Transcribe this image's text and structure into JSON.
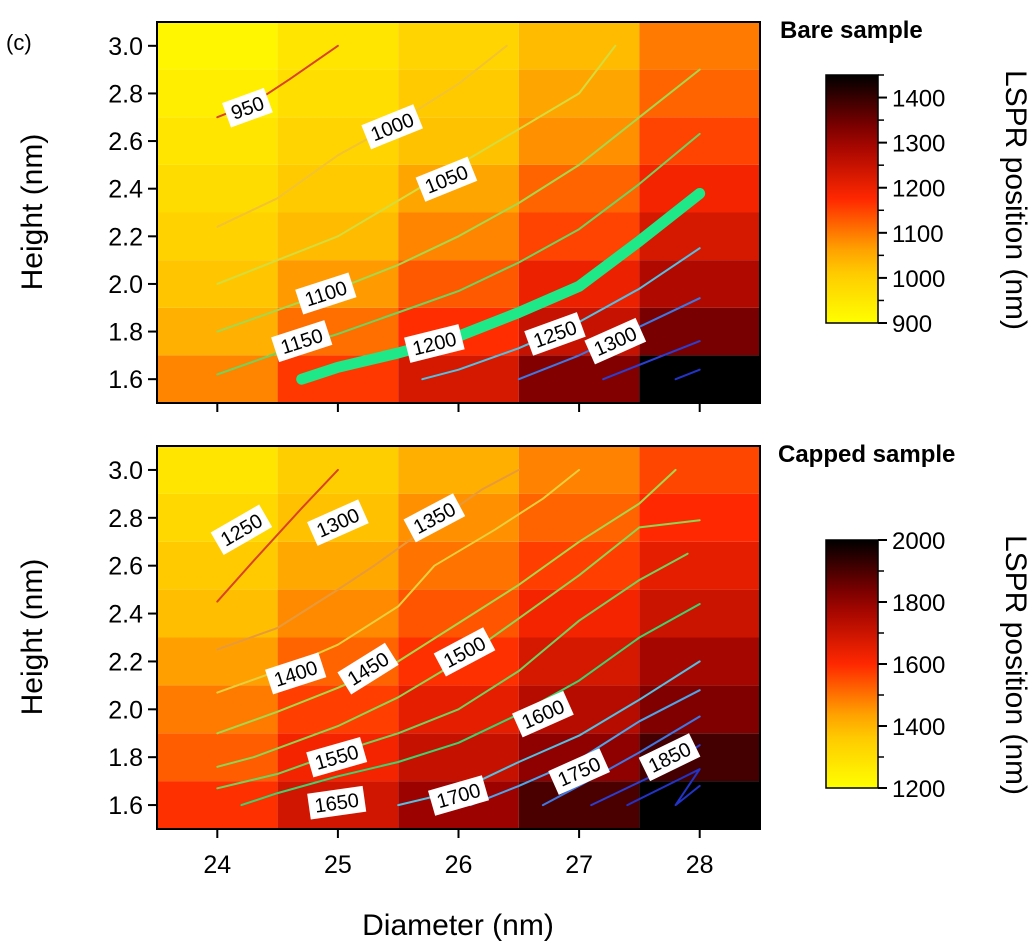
{
  "figure": {
    "panel_tag": "(c)",
    "xlabel": "Diameter (nm)"
  },
  "chart_data": [
    {
      "type": "heatmap",
      "title": "Bare sample",
      "xlabel": "Diameter (nm)",
      "ylabel": "Height (nm)",
      "colorbar_label": "LSPR position (nm)",
      "x": [
        24,
        25,
        26,
        27,
        28
      ],
      "x_ticks": [
        "24",
        "25",
        "26",
        "27",
        "28"
      ],
      "y": [
        1.6,
        1.8,
        2.0,
        2.2,
        2.4,
        2.6,
        2.8,
        3.0
      ],
      "y_ticks": [
        "1.6",
        "1.8",
        "2.0",
        "2.2",
        "2.4",
        "2.6",
        "2.8",
        "3.0"
      ],
      "xlim": [
        23.5,
        28.5
      ],
      "ylim": [
        1.5,
        3.1
      ],
      "color_range": [
        900,
        1450
      ],
      "colorbar_ticks": [
        "900",
        "1000",
        "1100",
        "1200",
        "1300",
        "1400"
      ],
      "z": [
        [
          1090,
          1160,
          1230,
          1330,
          1450
        ],
        [
          1050,
          1110,
          1170,
          1250,
          1340
        ],
        [
          1020,
          1070,
          1130,
          1200,
          1280
        ],
        [
          995,
          1040,
          1090,
          1150,
          1230
        ],
        [
          975,
          1010,
          1060,
          1120,
          1190
        ],
        [
          955,
          990,
          1030,
          1080,
          1150
        ],
        [
          935,
          970,
          1010,
          1060,
          1120
        ],
        [
          920,
          955,
          990,
          1040,
          1100
        ]
      ],
      "contours": [
        {
          "level": 950,
          "label": "950",
          "color": "#d9432a",
          "points": [
            [
              24.0,
              2.7
            ],
            [
              24.3,
              2.76
            ],
            [
              24.6,
              2.86
            ],
            [
              25.0,
              3.0
            ]
          ],
          "label_pos": [
            24.25,
            2.74
          ],
          "label_angle": -20
        },
        {
          "level": 1000,
          "label": "1000",
          "color": "#f2c230",
          "points": [
            [
              24.0,
              2.24
            ],
            [
              24.5,
              2.36
            ],
            [
              25.0,
              2.54
            ],
            [
              25.5,
              2.68
            ],
            [
              26.0,
              2.84
            ],
            [
              26.4,
              3.0
            ]
          ],
          "label_pos": [
            25.45,
            2.66
          ],
          "label_angle": -22
        },
        {
          "level": 1050,
          "label": "1050",
          "color": "#d6dc3a",
          "points": [
            [
              24.0,
              2.0
            ],
            [
              24.5,
              2.1
            ],
            [
              25.0,
              2.2
            ],
            [
              25.5,
              2.35
            ],
            [
              26.0,
              2.5
            ],
            [
              26.5,
              2.65
            ],
            [
              27.0,
              2.8
            ],
            [
              27.3,
              3.0
            ]
          ],
          "label_pos": [
            25.9,
            2.44
          ],
          "label_angle": -22
        },
        {
          "level": 1100,
          "label": "1100",
          "color": "#a6d84a",
          "points": [
            [
              24.0,
              1.8
            ],
            [
              24.5,
              1.89
            ],
            [
              25.0,
              1.98
            ],
            [
              25.5,
              2.08
            ],
            [
              26.0,
              2.2
            ],
            [
              26.5,
              2.34
            ],
            [
              27.0,
              2.5
            ],
            [
              27.5,
              2.7
            ],
            [
              28.0,
              2.9
            ]
          ],
          "label_pos": [
            24.9,
            1.96
          ],
          "label_angle": -18
        },
        {
          "level": 1150,
          "label": "1150",
          "color": "#6fd45e",
          "points": [
            [
              24.0,
              1.62
            ],
            [
              24.5,
              1.71
            ],
            [
              25.0,
              1.79
            ],
            [
              25.5,
              1.88
            ],
            [
              26.0,
              1.97
            ],
            [
              26.5,
              2.09
            ],
            [
              27.0,
              2.23
            ],
            [
              27.5,
              2.42
            ],
            [
              28.0,
              2.63
            ]
          ],
          "label_pos": [
            24.7,
            1.76
          ],
          "label_angle": -18
        },
        {
          "level": 1200,
          "label": "1200",
          "color": "#1ee887",
          "points": [
            [
              24.7,
              1.6
            ],
            [
              25.0,
              1.65
            ],
            [
              25.5,
              1.71
            ],
            [
              26.0,
              1.78
            ],
            [
              26.5,
              1.88
            ],
            [
              27.0,
              1.99
            ],
            [
              27.5,
              2.18
            ],
            [
              28.0,
              2.38
            ]
          ],
          "label_pos": [
            25.8,
            1.75
          ],
          "label_angle": -14,
          "thick": true
        },
        {
          "level": 1250,
          "label": "1250",
          "color": "#4fc2e6",
          "points": [
            [
              25.7,
              1.6
            ],
            [
              26.0,
              1.64
            ],
            [
              26.5,
              1.73
            ],
            [
              27.0,
              1.84
            ],
            [
              27.5,
              1.98
            ],
            [
              28.0,
              2.15
            ]
          ],
          "label_pos": [
            26.8,
            1.79
          ],
          "label_angle": -20
        },
        {
          "level": 1300,
          "label": "1300",
          "color": "#3d78e8",
          "points": [
            [
              26.5,
              1.6
            ],
            [
              27.0,
              1.7
            ],
            [
              27.5,
              1.82
            ],
            [
              28.0,
              1.94
            ]
          ],
          "label_pos": [
            27.3,
            1.76
          ],
          "label_angle": -24
        },
        {
          "level": 1350,
          "label": "",
          "color": "#2a3fd4",
          "points": [
            [
              27.2,
              1.6
            ],
            [
              27.6,
              1.68
            ],
            [
              28.0,
              1.76
            ]
          ]
        },
        {
          "level": 1400,
          "label": "",
          "color": "#2233c8",
          "points": [
            [
              27.8,
              1.6
            ],
            [
              28.0,
              1.64
            ]
          ]
        }
      ]
    },
    {
      "type": "heatmap",
      "title": "Capped sample",
      "xlabel": "Diameter (nm)",
      "ylabel": "Height (nm)",
      "colorbar_label": "LSPR position (nm)",
      "x": [
        24,
        25,
        26,
        27,
        28
      ],
      "x_ticks": [
        "24",
        "25",
        "26",
        "27",
        "28"
      ],
      "y": [
        1.6,
        1.8,
        2.0,
        2.2,
        2.4,
        2.6,
        2.8,
        3.0
      ],
      "y_ticks": [
        "1.6",
        "1.8",
        "2.0",
        "2.2",
        "2.4",
        "2.6",
        "2.8",
        "3.0"
      ],
      "xlim": [
        23.5,
        28.5
      ],
      "ylim": [
        1.5,
        3.1
      ],
      "color_range": [
        1200,
        2000
      ],
      "colorbar_ticks": [
        "1200",
        "1400",
        "1600",
        "1800",
        "2000"
      ],
      "z": [
        [
          1590,
          1690,
          1790,
          1900,
          2010
        ],
        [
          1530,
          1620,
          1710,
          1810,
          1910
        ],
        [
          1490,
          1570,
          1650,
          1740,
          1830
        ],
        [
          1440,
          1520,
          1590,
          1680,
          1770
        ],
        [
          1400,
          1470,
          1540,
          1620,
          1700
        ],
        [
          1360,
          1430,
          1500,
          1570,
          1650
        ],
        [
          1320,
          1390,
          1460,
          1520,
          1600
        ],
        [
          1280,
          1350,
          1420,
          1480,
          1560
        ]
      ],
      "contours": [
        {
          "level": 1250,
          "label": "1250",
          "color": "#d9432a",
          "points": [
            [
              24.0,
              2.45
            ],
            [
              24.3,
              2.62
            ],
            [
              24.7,
              2.84
            ],
            [
              25.0,
              3.0
            ]
          ],
          "label_pos": [
            24.2,
            2.75
          ],
          "label_angle": -30
        },
        {
          "level": 1300,
          "label": "1300",
          "color": "#e89a3a",
          "points": [
            [
              24.0,
              2.25
            ],
            [
              24.5,
              2.34
            ],
            [
              25.0,
              2.5
            ],
            [
              25.3,
              2.6
            ],
            [
              25.8,
              2.78
            ],
            [
              26.2,
              2.92
            ],
            [
              26.5,
              3.0
            ]
          ],
          "label_pos": [
            25.0,
            2.78
          ],
          "label_angle": -24
        },
        {
          "level": 1350,
          "label": "1350",
          "color": "#e6d03c",
          "points": [
            [
              24.0,
              2.07
            ],
            [
              24.5,
              2.16
            ],
            [
              25.0,
              2.27
            ],
            [
              25.5,
              2.43
            ],
            [
              25.8,
              2.6
            ],
            [
              26.3,
              2.75
            ],
            [
              26.7,
              2.88
            ],
            [
              27.0,
              3.0
            ]
          ],
          "label_pos": [
            25.8,
            2.8
          ],
          "label_angle": -28
        },
        {
          "level": 1400,
          "label": "1400",
          "color": "#a6d84a",
          "points": [
            [
              24.0,
              1.9
            ],
            [
              24.5,
              1.99
            ],
            [
              25.0,
              2.09
            ],
            [
              25.5,
              2.2
            ],
            [
              26.0,
              2.36
            ],
            [
              26.5,
              2.52
            ],
            [
              27.0,
              2.7
            ],
            [
              27.5,
              2.86
            ],
            [
              27.8,
              3.0
            ]
          ],
          "label_pos": [
            24.65,
            2.15
          ],
          "label_angle": -18
        },
        {
          "level": 1450,
          "label": "1450",
          "color": "#8cd652",
          "points": [
            [
              24.0,
              1.76
            ],
            [
              24.3,
              1.8
            ],
            [
              25.0,
              1.93
            ],
            [
              25.5,
              2.05
            ],
            [
              26.0,
              2.2
            ],
            [
              26.5,
              2.38
            ],
            [
              27.0,
              2.56
            ],
            [
              27.5,
              2.76
            ],
            [
              28.0,
              2.79
            ]
          ],
          "label_pos": [
            25.25,
            2.17
          ],
          "label_angle": -32
        },
        {
          "level": 1500,
          "label": "1500",
          "color": "#6fd45e",
          "points": [
            [
              24.0,
              1.67
            ],
            [
              24.5,
              1.73
            ],
            [
              25.0,
              1.82
            ],
            [
              25.5,
              1.9
            ],
            [
              26.0,
              2.0
            ],
            [
              26.5,
              2.16
            ],
            [
              27.0,
              2.37
            ],
            [
              27.5,
              2.54
            ],
            [
              27.9,
              2.65
            ]
          ],
          "label_pos": [
            26.05,
            2.24
          ],
          "label_angle": -28
        },
        {
          "level": 1550,
          "label": "1550",
          "color": "#3cd46e",
          "points": [
            [
              24.2,
              1.6
            ],
            [
              24.5,
              1.65
            ],
            [
              25.0,
              1.72
            ],
            [
              25.5,
              1.78
            ],
            [
              26.0,
              1.86
            ],
            [
              26.5,
              1.98
            ],
            [
              27.0,
              2.12
            ],
            [
              27.5,
              2.3
            ],
            [
              28.0,
              2.44
            ]
          ],
          "label_pos": [
            24.99,
            1.8
          ],
          "label_angle": -16
        },
        {
          "level": 1600,
          "label": "1600",
          "color": "#4fc2e6",
          "points": [
            [
              25.5,
              1.6
            ],
            [
              26.0,
              1.66
            ],
            [
              26.5,
              1.78
            ],
            [
              27.0,
              1.89
            ],
            [
              27.5,
              2.04
            ],
            [
              28.0,
              2.2
            ]
          ],
          "label_pos": [
            26.7,
            1.98
          ],
          "label_angle": -24
        },
        {
          "level": 1650,
          "label": "1650",
          "color": "#4aa6ee",
          "points": [
            [
              26.1,
              1.6
            ],
            [
              26.5,
              1.68
            ],
            [
              27.0,
              1.79
            ],
            [
              27.5,
              1.95
            ],
            [
              28.0,
              2.08
            ]
          ],
          "label_pos": [
            24.99,
            1.61
          ],
          "label_angle": -8
        },
        {
          "level": 1700,
          "label": "1700",
          "color": "#3d78e8",
          "points": [
            [
              26.7,
              1.6
            ],
            [
              27.0,
              1.68
            ],
            [
              27.5,
              1.82
            ],
            [
              28.0,
              1.97
            ]
          ],
          "label_pos": [
            26.0,
            1.64
          ],
          "label_angle": -16
        },
        {
          "level": 1750,
          "label": "1750",
          "color": "#2a3fd4",
          "points": [
            [
              27.1,
              1.6
            ],
            [
              27.6,
              1.72
            ],
            [
              28.0,
              1.85
            ]
          ],
          "label_pos": [
            27.0,
            1.74
          ],
          "label_angle": -24
        },
        {
          "level": 1850,
          "label": "1850",
          "color": "#2233c8",
          "points": [
            [
              27.4,
              1.6
            ],
            [
              27.8,
              1.7
            ],
            [
              28.0,
              1.75
            ],
            [
              27.8,
              1.6
            ],
            [
              28.0,
              1.68
            ]
          ],
          "label_pos": [
            27.75,
            1.8
          ],
          "label_angle": -26
        }
      ]
    }
  ]
}
